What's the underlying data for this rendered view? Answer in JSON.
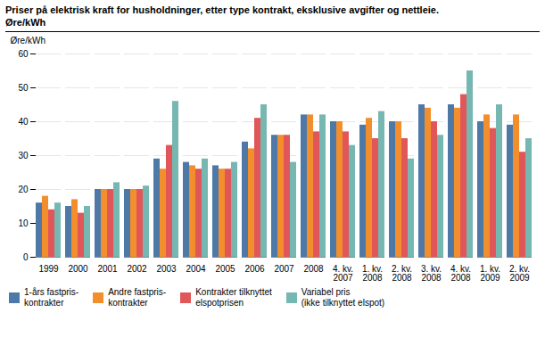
{
  "chart_data": {
    "type": "bar",
    "title": "Priser på elektrisk kraft for husholdninger, etter type kontrakt, eksklusive avgifter og nettleie.",
    "subtitle": "Øre/kWh",
    "ylabel": "Øre/kWh",
    "categories": [
      "1999",
      "2000",
      "2001",
      "2002",
      "2003",
      "2004",
      "2005",
      "2006",
      "2007",
      "2008",
      "4. kv.\n2007",
      "1. kv.\n2008",
      "2. kv.\n2008",
      "3. kv.\n2008",
      "4. kv.\n2008",
      "1. kv.\n2009",
      "2. kv.\n2009"
    ],
    "series": [
      {
        "name": "1-års fastpris-\nkontrakter",
        "values": [
          16,
          15,
          20,
          20,
          29,
          28,
          27,
          34,
          36,
          42,
          40,
          39,
          40,
          45,
          45,
          40,
          39
        ]
      },
      {
        "name": "Andre fastpris-\nkontrakter",
        "values": [
          18,
          17,
          20,
          20,
          26,
          27,
          26,
          32,
          36,
          42,
          40,
          41,
          40,
          44,
          44,
          42,
          42
        ]
      },
      {
        "name": "Kontrakter tilknyttet\nelspotprisen",
        "values": [
          14,
          13,
          20,
          20,
          33,
          26,
          26,
          41,
          36,
          37,
          37,
          35,
          35,
          40,
          48,
          38,
          31
        ]
      },
      {
        "name": "Variabel pris\n(ikke tilknyttet elspot)",
        "values": [
          16,
          15,
          22,
          21,
          46,
          29,
          28,
          45,
          28,
          42,
          33,
          43,
          29,
          36,
          55,
          45,
          35
        ]
      }
    ],
    "ylim": [
      0,
      60
    ],
    "yticks": [
      0,
      10,
      20,
      30,
      40,
      50,
      60
    ],
    "grid": true,
    "legend": "bottom"
  }
}
